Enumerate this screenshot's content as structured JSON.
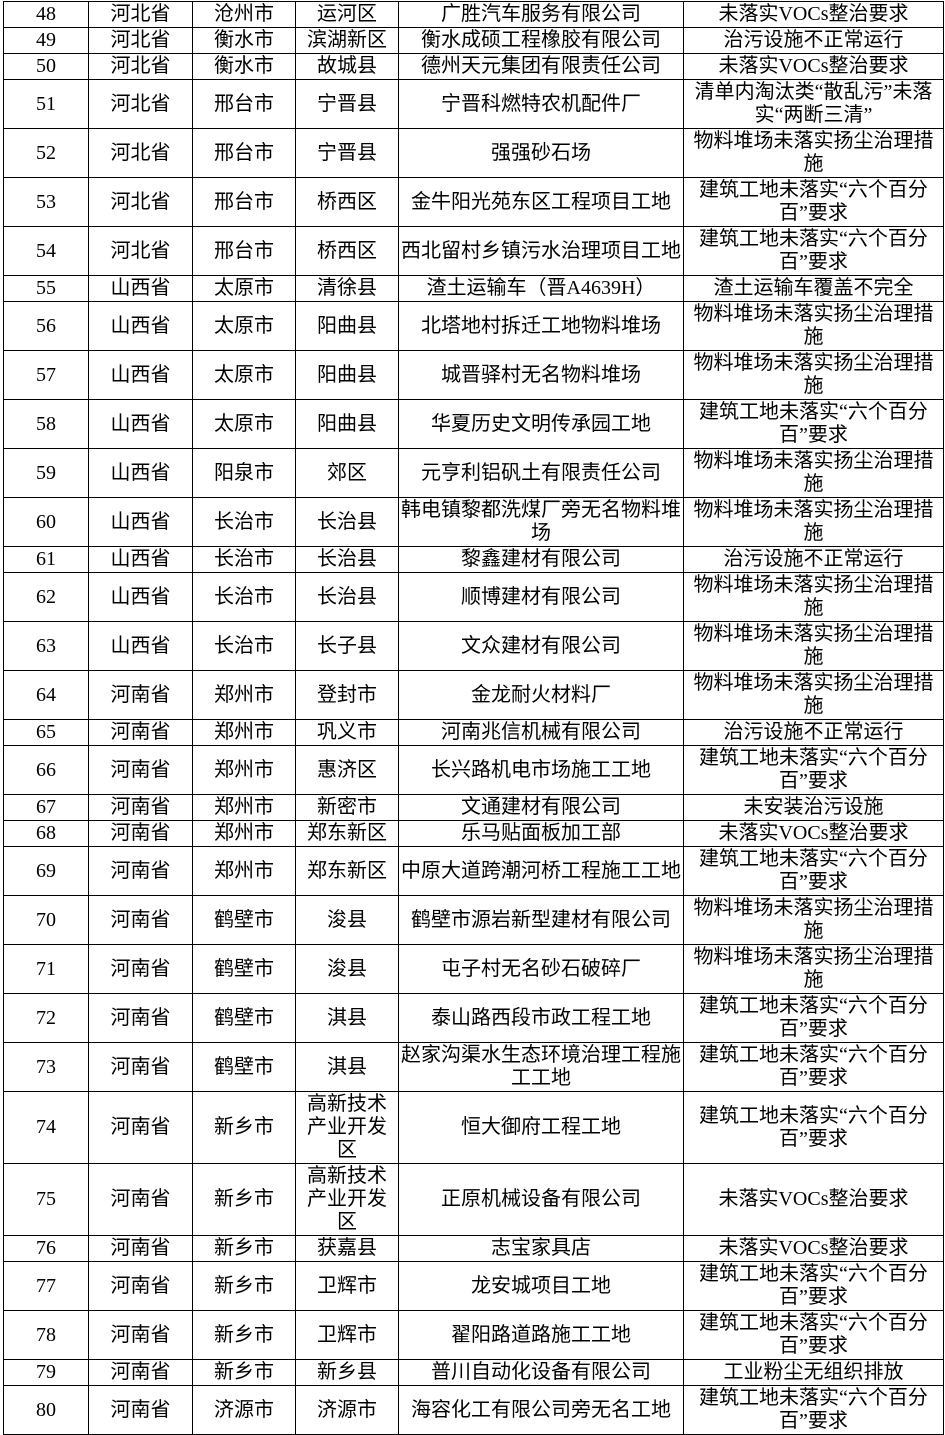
{
  "colors": {
    "background": "#ffffff",
    "border": "#000000",
    "text": "#000000"
  },
  "table": {
    "column_keys": [
      "seq",
      "province",
      "city",
      "district",
      "site",
      "violation"
    ],
    "rows": [
      {
        "seq": "48",
        "province": "河北省",
        "city": "沧州市",
        "district": "运河区",
        "site": "广胜汽车服务有限公司",
        "violation": "未落实VOCs整治要求"
      },
      {
        "seq": "49",
        "province": "河北省",
        "city": "衡水市",
        "district": "滨湖新区",
        "site": "衡水成硕工程橡胶有限公司",
        "violation": "治污设施不正常运行"
      },
      {
        "seq": "50",
        "province": "河北省",
        "city": "衡水市",
        "district": "故城县",
        "site": "德州天元集团有限责任公司",
        "violation": "未落实VOCs整治要求"
      },
      {
        "seq": "51",
        "province": "河北省",
        "city": "邢台市",
        "district": "宁晋县",
        "site": "宁晋科燃特农机配件厂",
        "violation": "清单内淘汰类“散乱污”未落实“两断三清”"
      },
      {
        "seq": "52",
        "province": "河北省",
        "city": "邢台市",
        "district": "宁晋县",
        "site": "强强砂石场",
        "violation": "物料堆场未落实扬尘治理措施"
      },
      {
        "seq": "53",
        "province": "河北省",
        "city": "邢台市",
        "district": "桥西区",
        "site": "金牛阳光苑东区工程项目工地",
        "violation": "建筑工地未落实“六个百分百”要求"
      },
      {
        "seq": "54",
        "province": "河北省",
        "city": "邢台市",
        "district": "桥西区",
        "site": "西北留村乡镇污水治理项目工地",
        "violation": "建筑工地未落实“六个百分百”要求"
      },
      {
        "seq": "55",
        "province": "山西省",
        "city": "太原市",
        "district": "清徐县",
        "site": "渣土运输车（晋A4639H）",
        "violation": "渣土运输车覆盖不完全"
      },
      {
        "seq": "56",
        "province": "山西省",
        "city": "太原市",
        "district": "阳曲县",
        "site": "北塔地村拆迁工地物料堆场",
        "violation": "物料堆场未落实扬尘治理措施"
      },
      {
        "seq": "57",
        "province": "山西省",
        "city": "太原市",
        "district": "阳曲县",
        "site": "城晋驿村无名物料堆场",
        "violation": "物料堆场未落实扬尘治理措施"
      },
      {
        "seq": "58",
        "province": "山西省",
        "city": "太原市",
        "district": "阳曲县",
        "site": "华夏历史文明传承园工地",
        "violation": "建筑工地未落实“六个百分百”要求"
      },
      {
        "seq": "59",
        "province": "山西省",
        "city": "阳泉市",
        "district": "郊区",
        "site": "元亨利铝矾土有限责任公司",
        "violation": "物料堆场未落实扬尘治理措施"
      },
      {
        "seq": "60",
        "province": "山西省",
        "city": "长治市",
        "district": "长治县",
        "site": "韩电镇黎都洗煤厂旁无名物料堆场",
        "violation": "物料堆场未落实扬尘治理措施"
      },
      {
        "seq": "61",
        "province": "山西省",
        "city": "长治市",
        "district": "长治县",
        "site": "黎鑫建材有限公司",
        "violation": "治污设施不正常运行"
      },
      {
        "seq": "62",
        "province": "山西省",
        "city": "长治市",
        "district": "长治县",
        "site": "顺博建材有限公司",
        "violation": "物料堆场未落实扬尘治理措施"
      },
      {
        "seq": "63",
        "province": "山西省",
        "city": "长治市",
        "district": "长子县",
        "site": "文众建材有限公司",
        "violation": "物料堆场未落实扬尘治理措施"
      },
      {
        "seq": "64",
        "province": "河南省",
        "city": "郑州市",
        "district": "登封市",
        "site": "金龙耐火材料厂",
        "violation": "物料堆场未落实扬尘治理措施"
      },
      {
        "seq": "65",
        "province": "河南省",
        "city": "郑州市",
        "district": "巩义市",
        "site": "河南兆信机械有限公司",
        "violation": "治污设施不正常运行"
      },
      {
        "seq": "66",
        "province": "河南省",
        "city": "郑州市",
        "district": "惠济区",
        "site": "长兴路机电市场施工工地",
        "violation": "建筑工地未落实“六个百分百”要求"
      },
      {
        "seq": "67",
        "province": "河南省",
        "city": "郑州市",
        "district": "新密市",
        "site": "文通建材有限公司",
        "violation": "未安装治污设施"
      },
      {
        "seq": "68",
        "province": "河南省",
        "city": "郑州市",
        "district": "郑东新区",
        "site": "乐马贴面板加工部",
        "violation": "未落实VOCs整治要求"
      },
      {
        "seq": "69",
        "province": "河南省",
        "city": "郑州市",
        "district": "郑东新区",
        "site": "中原大道跨潮河桥工程施工工地",
        "violation": "建筑工地未落实“六个百分百”要求"
      },
      {
        "seq": "70",
        "province": "河南省",
        "city": "鹤壁市",
        "district": "浚县",
        "site": "鹤壁市源岩新型建材有限公司",
        "violation": "物料堆场未落实扬尘治理措施"
      },
      {
        "seq": "71",
        "province": "河南省",
        "city": "鹤壁市",
        "district": "浚县",
        "site": "屯子村无名砂石破碎厂",
        "violation": "物料堆场未落实扬尘治理措施"
      },
      {
        "seq": "72",
        "province": "河南省",
        "city": "鹤壁市",
        "district": "淇县",
        "site": "泰山路西段市政工程工地",
        "violation": "建筑工地未落实“六个百分百”要求"
      },
      {
        "seq": "73",
        "province": "河南省",
        "city": "鹤壁市",
        "district": "淇县",
        "site": "赵家沟渠水生态环境治理工程施工工地",
        "violation": "建筑工地未落实“六个百分百”要求"
      },
      {
        "seq": "74",
        "province": "河南省",
        "city": "新乡市",
        "district": "高新技术产业开发区",
        "site": "恒大御府工程工地",
        "violation": "建筑工地未落实“六个百分百”要求"
      },
      {
        "seq": "75",
        "province": "河南省",
        "city": "新乡市",
        "district": "高新技术产业开发区",
        "site": "正原机械设备有限公司",
        "violation": "未落实VOCs整治要求"
      },
      {
        "seq": "76",
        "province": "河南省",
        "city": "新乡市",
        "district": "获嘉县",
        "site": "志宝家具店",
        "violation": "未落实VOCs整治要求"
      },
      {
        "seq": "77",
        "province": "河南省",
        "city": "新乡市",
        "district": "卫辉市",
        "site": "龙安城项目工地",
        "violation": "建筑工地未落实“六个百分百”要求"
      },
      {
        "seq": "78",
        "province": "河南省",
        "city": "新乡市",
        "district": "卫辉市",
        "site": "翟阳路道路施工工地",
        "violation": "建筑工地未落实“六个百分百”要求"
      },
      {
        "seq": "79",
        "province": "河南省",
        "city": "新乡市",
        "district": "新乡县",
        "site": "普川自动化设备有限公司",
        "violation": "工业粉尘无组织排放"
      },
      {
        "seq": "80",
        "province": "河南省",
        "city": "济源市",
        "district": "济源市",
        "site": "海容化工有限公司旁无名工地",
        "violation": "建筑工地未落实“六个百分百”要求"
      }
    ]
  }
}
